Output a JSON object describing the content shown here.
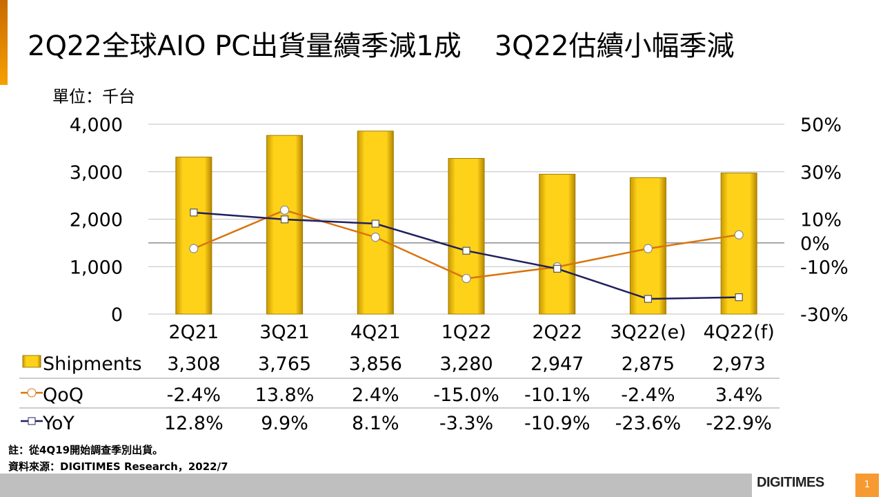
{
  "title": {
    "part1": "2Q22全球AIO PC出貨量續季減1成",
    "part2": "3Q22估續小幅季減"
  },
  "unit_label": "單位：千台",
  "chart_data": {
    "type": "bar",
    "categories": [
      "2Q21",
      "3Q21",
      "4Q21",
      "1Q22",
      "2Q22",
      "3Q22(e)",
      "4Q22(f)"
    ],
    "series": [
      {
        "name": "Shipments",
        "kind": "bar",
        "axis": "left",
        "values": [
          3308,
          3765,
          3856,
          3280,
          2947,
          2875,
          2973
        ],
        "labels": [
          "3,308",
          "3,765",
          "3,856",
          "3,280",
          "2,947",
          "2,875",
          "2,973"
        ],
        "color": "#f5c400"
      },
      {
        "name": "QoQ",
        "kind": "line",
        "axis": "right",
        "values": [
          -2.4,
          13.8,
          2.4,
          -15.0,
          -10.1,
          -2.4,
          3.4
        ],
        "labels": [
          "-2.4%",
          "13.8%",
          "2.4%",
          "-15.0%",
          "-10.1%",
          "-2.4%",
          "3.4%"
        ],
        "color": "#d9730d"
      },
      {
        "name": "YoY",
        "kind": "line",
        "axis": "right",
        "values": [
          12.8,
          9.9,
          8.1,
          -3.3,
          -10.9,
          -23.6,
          -22.9
        ],
        "labels": [
          "12.8%",
          "9.9%",
          "8.1%",
          "-3.3%",
          "-10.9%",
          "-23.6%",
          "-22.9%"
        ],
        "color": "#1f1f5e"
      }
    ],
    "left_axis": {
      "ylim": [
        0,
        4000
      ],
      "ticks": [
        "0",
        "1,000",
        "2,000",
        "3,000",
        "4,000"
      ]
    },
    "right_axis": {
      "ylim": [
        -30,
        50
      ],
      "ticks": [
        "-30%",
        "-10%",
        "0%",
        "10%",
        "30%",
        "50%"
      ]
    },
    "grid": true
  },
  "notes": [
    "註：從4Q19開始調查季別出貨。",
    "資料來源：DIGITIMES Research，2022/7"
  ],
  "logo": "DIGITIMES",
  "page_number": "1"
}
